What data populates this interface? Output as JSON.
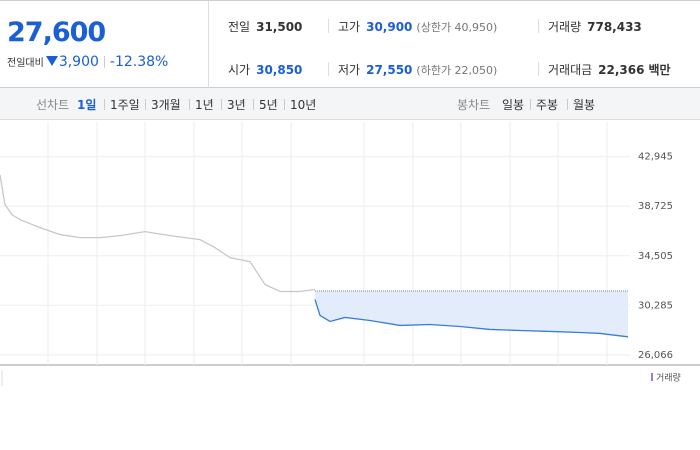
{
  "quote": {
    "price": "27,600",
    "change_label": "전일대비",
    "change": "3,900",
    "change_pct": "-12.38%"
  },
  "stats": [
    [
      {
        "label": "전일",
        "value": "31,500"
      },
      {
        "label": "고가",
        "value": "30,900",
        "note": "(상한가 40,950)"
      },
      {
        "label": "거래량",
        "value": "778,433"
      }
    ],
    [
      {
        "label": "시가",
        "value": "30,850"
      },
      {
        "label": "저가",
        "value": "27,550",
        "note": "(하한가 22,050)"
      },
      {
        "label": "거래대금",
        "value": "22,366",
        "unit": "백만"
      }
    ]
  ],
  "tabs": {
    "line_label": "선차트",
    "line": [
      "1일",
      "1주일",
      "3개월",
      "1년",
      "3년",
      "5년",
      "10년"
    ],
    "candle_label": "봉차트",
    "candle": [
      "일봉",
      "주봉",
      "월봉"
    ]
  },
  "chart_data": {
    "type": "line",
    "xlim": [
      0,
      630
    ],
    "ylim": [
      25200,
      45900
    ],
    "xticks": [
      48,
      97,
      145,
      194,
      242,
      291,
      364,
      413,
      461,
      510,
      558,
      607
    ],
    "yticks": [
      {
        "value": 42945,
        "label": "42,945"
      },
      {
        "value": 38725,
        "label": "38,725"
      },
      {
        "value": 34505,
        "label": "34,505"
      },
      {
        "value": 30285,
        "label": "30,285"
      },
      {
        "value": 26066,
        "label": "26,066"
      }
    ],
    "grid": true,
    "baseline": 31500,
    "series": [
      {
        "color": "#c8c8c8",
        "x": [
          0,
          5,
          12,
          20,
          40,
          60,
          80,
          100,
          120,
          145,
          170,
          200,
          215,
          230,
          250,
          265,
          280,
          300,
          315
        ],
        "values": [
          41400,
          38860,
          38010,
          37580,
          36900,
          36310,
          36050,
          36050,
          36220,
          36560,
          36220,
          35880,
          35200,
          34350,
          34010,
          32060,
          31460,
          31460,
          31630
        ]
      },
      {
        "color": "#3a7be0",
        "x": [
          315,
          320,
          330,
          345,
          370,
          400,
          430,
          460,
          490,
          520,
          550,
          580,
          600,
          628
        ],
        "values": [
          30780,
          29420,
          28910,
          29250,
          28990,
          28570,
          28650,
          28480,
          28230,
          28140,
          28060,
          27970,
          27890,
          27600
        ]
      }
    ],
    "legend": "거래량"
  }
}
